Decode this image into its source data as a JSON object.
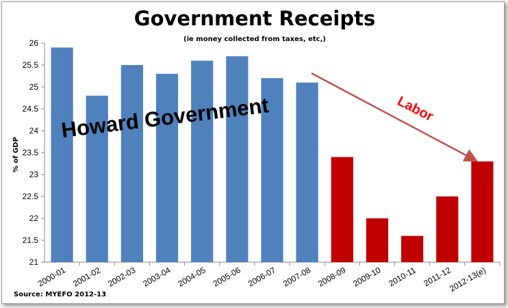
{
  "chart_data": {
    "type": "bar",
    "title": "Government Receipts",
    "subtitle": "(ie money collected from taxes, etc,)",
    "ylabel": "% of GDP",
    "xlabel": "",
    "ylim": [
      21,
      26
    ],
    "yticks": [
      21,
      21.5,
      22,
      22.5,
      23,
      23.5,
      24,
      24.5,
      25,
      25.5,
      26
    ],
    "categories": [
      "2000-01",
      "2001-02",
      "2002-03",
      "2003-04",
      "2004-05",
      "2005-06",
      "2006-07",
      "2007-08",
      "2008-09",
      "2009-10",
      "2010-11",
      "2011-12",
      "2012-13(e)"
    ],
    "values": [
      25.9,
      24.8,
      25.5,
      25.3,
      25.6,
      25.7,
      25.2,
      25.1,
      23.4,
      22.0,
      21.6,
      22.5,
      23.3
    ],
    "bar_colors": [
      "#4f81bd",
      "#4f81bd",
      "#4f81bd",
      "#4f81bd",
      "#4f81bd",
      "#4f81bd",
      "#4f81bd",
      "#4f81bd",
      "#c00000",
      "#c00000",
      "#c00000",
      "#c00000",
      "#c00000"
    ],
    "grid": false,
    "legend": "none",
    "annotations": [
      {
        "text": "Howard Government",
        "color": "#000000"
      },
      {
        "text": "Labor",
        "color": "#ff0000"
      }
    ],
    "source": "Source: MYEFO 2012-13"
  }
}
